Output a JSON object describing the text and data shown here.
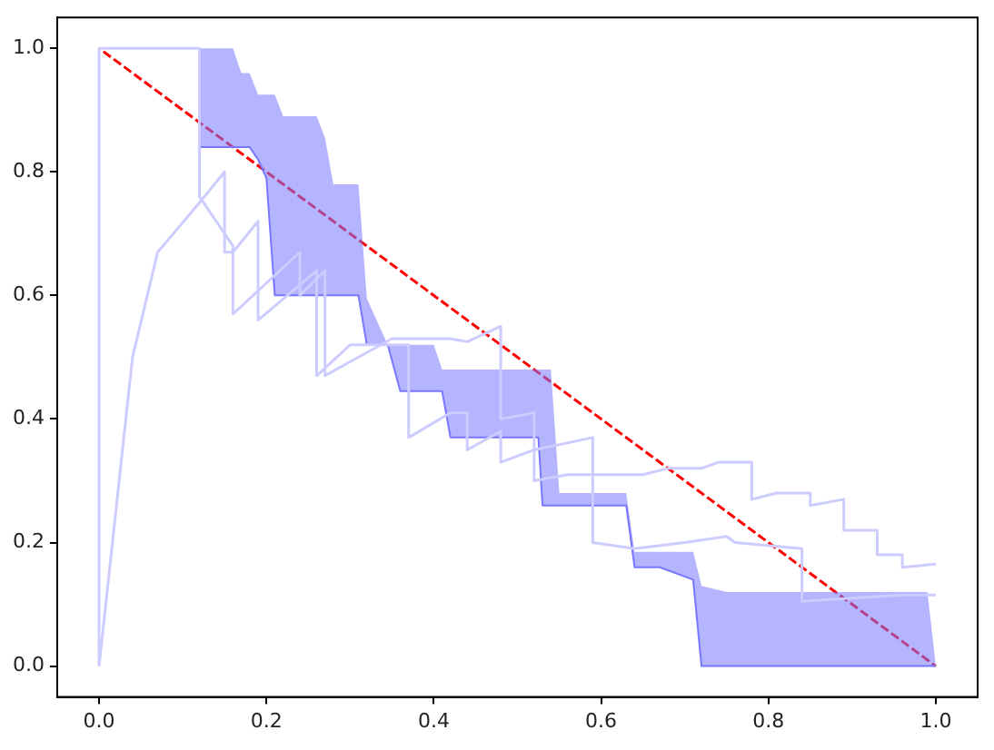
{
  "chart_data": {
    "type": "line",
    "xlim": [
      -0.05,
      1.05
    ],
    "ylim": [
      -0.05,
      1.05
    ],
    "xticks": [
      {
        "value": 0,
        "label": "0.0"
      },
      {
        "value": 0.2,
        "label": "0.2"
      },
      {
        "value": 0.4,
        "label": "0.4"
      },
      {
        "value": 0.6,
        "label": "0.6"
      },
      {
        "value": 0.8,
        "label": "0.8"
      },
      {
        "value": 1,
        "label": "1.0"
      }
    ],
    "yticks": [
      {
        "value": 0,
        "label": "0.0"
      },
      {
        "value": 0.2,
        "label": "0.2"
      },
      {
        "value": 0.4,
        "label": "0.4"
      },
      {
        "value": 0.6,
        "label": "0.6"
      },
      {
        "value": 0.8,
        "label": "0.8"
      },
      {
        "value": 1,
        "label": "1.0"
      }
    ],
    "grid": false,
    "legend": false,
    "marker": "none",
    "series": [
      {
        "color": "#ccccff",
        "x": [
          0,
          0,
          0.12,
          0.12,
          0.16,
          0.16,
          0.24,
          0.24,
          0.27,
          0.27,
          0.35,
          0.42,
          0.44,
          0.48,
          0.48,
          0.52,
          0.52,
          0.56,
          0.6,
          0.65,
          0.68,
          0.72,
          0.74,
          0.78,
          0.78,
          0.81,
          0.85,
          0.85,
          0.89,
          0.89,
          0.93,
          0.93,
          0.96,
          0.96,
          1.0
        ],
        "values": [
          0,
          1,
          1,
          0.76,
          0.68,
          0.57,
          0.67,
          0.6,
          0.64,
          0.47,
          0.53,
          0.53,
          0.525,
          0.55,
          0.4,
          0.41,
          0.3,
          0.31,
          0.31,
          0.31,
          0.32,
          0.32,
          0.33,
          0.33,
          0.27,
          0.28,
          0.28,
          0.26,
          0.27,
          0.22,
          0.22,
          0.18,
          0.18,
          0.16,
          0.165
        ]
      },
      {
        "color": "#ccccff",
        "x": [
          0,
          0.04,
          0.07,
          0.12,
          0.15,
          0.15,
          0.16,
          0.19,
          0.19,
          0.26,
          0.26,
          0.3,
          0.37,
          0.37,
          0.42,
          0.44,
          0.44,
          0.48,
          0.48,
          0.52,
          0.59,
          0.59,
          0.64,
          0.7,
          0.75,
          0.76,
          0.84,
          0.84,
          0.9,
          0.96,
          1.0
        ],
        "values": [
          0,
          0.5,
          0.67,
          0.75,
          0.8,
          0.67,
          0.67,
          0.72,
          0.56,
          0.64,
          0.47,
          0.52,
          0.52,
          0.37,
          0.41,
          0.41,
          0.35,
          0.38,
          0.33,
          0.35,
          0.37,
          0.2,
          0.19,
          0.2,
          0.21,
          0.2,
          0.19,
          0.105,
          0.11,
          0.115,
          0.115
        ]
      },
      {
        "color": "#7777ff",
        "x": [
          0.12,
          0.16,
          0.17,
          0.18,
          0.19,
          0.2,
          0.21,
          0.22,
          0.26,
          0.27,
          0.28,
          0.31,
          0.32,
          0.345,
          0.36,
          0.4,
          0.41,
          0.42,
          0.525,
          0.53,
          0.54,
          0.55,
          0.63,
          0.64,
          0.67,
          0.71,
          0.72,
          0.75,
          0.99,
          1.0
        ],
        "values": [
          0.84,
          0.84,
          0.84,
          0.84,
          0.82,
          0.79,
          0.6,
          0.6,
          0.6,
          0.6,
          0.6,
          0.6,
          0.52,
          0.52,
          0.445,
          0.445,
          0.445,
          0.37,
          0.37,
          0.26,
          0.26,
          0.26,
          0.26,
          0.16,
          0.16,
          0.14,
          0,
          0,
          0,
          0
        ],
        "upper": [
          1,
          1,
          0.96,
          0.96,
          0.925,
          0.925,
          0.925,
          0.89,
          0.89,
          0.855,
          0.78,
          0.78,
          0.595,
          0.52,
          0.52,
          0.52,
          0.48,
          0.48,
          0.48,
          0.48,
          0.48,
          0.28,
          0.28,
          0.185,
          0.185,
          0.185,
          0.13,
          0.12,
          0.12,
          0
        ],
        "lower": [
          0.84,
          0.84,
          0.84,
          0.84,
          0.82,
          0.79,
          0.6,
          0.6,
          0.6,
          0.6,
          0.6,
          0.6,
          0.52,
          0.52,
          0.445,
          0.445,
          0.445,
          0.37,
          0.37,
          0.26,
          0.26,
          0.26,
          0.26,
          0.16,
          0.16,
          0.14,
          0,
          0,
          0,
          0
        ]
      },
      {
        "color": "#ff0000",
        "line_style": "dashed",
        "x": [
          0,
          1
        ],
        "values": [
          1,
          0
        ]
      }
    ]
  }
}
